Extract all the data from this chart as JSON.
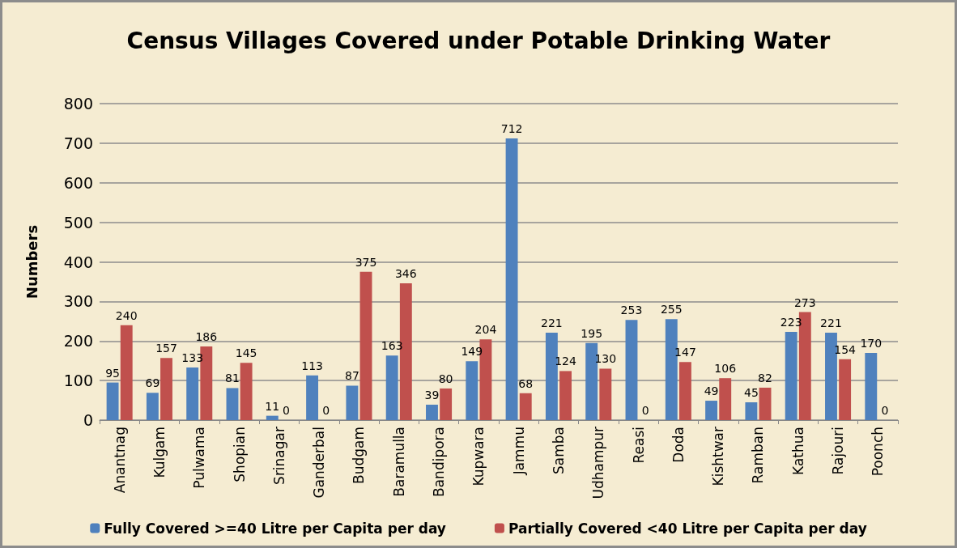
{
  "chart_data": {
    "type": "bar",
    "title": "Census Villages Covered under Potable Drinking Water",
    "ylabel": "Numbers",
    "categories": [
      "Anantnag",
      "Kulgam",
      "Pulwama",
      "Shopian",
      "Srinagar",
      "Ganderbal",
      "Budgam",
      "Baramulla",
      "Bandipora",
      "Kupwara",
      "Jammu",
      "Samba",
      "Udhampur",
      "Reasi",
      "Doda",
      "Kishtwar",
      "Ramban",
      "Kathua",
      "Rajouri",
      "Poonch"
    ],
    "series": [
      {
        "name": "Fully Covered >=40 Litre per Capita per day",
        "color": "#4f81bd",
        "values": [
          95,
          69,
          133,
          81,
          11,
          113,
          87,
          163,
          39,
          149,
          712,
          221,
          195,
          253,
          255,
          49,
          45,
          223,
          221,
          170
        ]
      },
      {
        "name": "Partially Covered <40 Litre per Capita per day",
        "color": "#c0504d",
        "values": [
          240,
          157,
          186,
          145,
          0,
          0,
          375,
          346,
          80,
          204,
          68,
          124,
          130,
          0,
          147,
          106,
          82,
          273,
          154,
          0
        ]
      }
    ],
    "ylim": [
      0,
      800
    ],
    "yticks": [
      0,
      100,
      200,
      300,
      400,
      500,
      600,
      700,
      800
    ],
    "grid": "y",
    "legend": "bottom",
    "data_labels": true
  }
}
